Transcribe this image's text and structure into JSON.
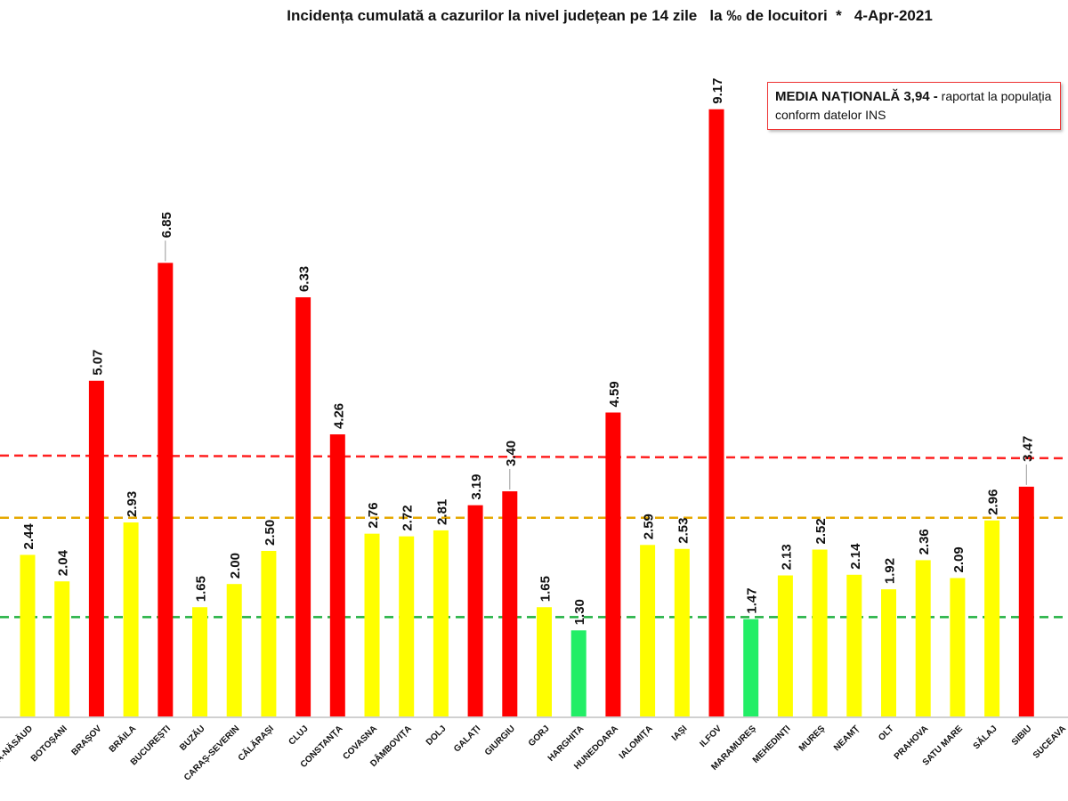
{
  "chart_data": {
    "type": "bar",
    "title": "Incidența cumulată a cazurilor la nivel județean pe 14 zile   la ‰ de locuitori  *   4-Apr-2021",
    "xlabel": "",
    "ylabel": "",
    "ylim": [
      0,
      9.2
    ],
    "grid": false,
    "categories": [
      "BISTRIȚA-NĂSĂUD",
      "BOTOȘANI",
      "BRAȘOV",
      "BRĂILA",
      "BUCUREȘTI",
      "BUZĂU",
      "CARAȘ-SEVERIN",
      "CĂLĂRAȘI",
      "CLUJ",
      "CONSTANȚA",
      "COVASNA",
      "DÂMBOVIȚA",
      "DOLJ",
      "GALAȚI",
      "GIURGIU",
      "GORJ",
      "HARGHITA",
      "HUNEDOARA",
      "IALOMIȚA",
      "IAȘI",
      "ILFOV",
      "MARAMUREȘ",
      "MEHEDINȚI",
      "MUREȘ",
      "NEAMȚ",
      "OLT",
      "PRAHOVA",
      "SATU MARE",
      "SĂLAJ",
      "SIBIU",
      "SUCEAVA"
    ],
    "values": [
      2.44,
      2.04,
      5.07,
      2.93,
      6.85,
      1.65,
      2.0,
      2.5,
      6.33,
      4.26,
      2.76,
      2.72,
      2.81,
      3.19,
      3.4,
      1.65,
      1.3,
      4.59,
      2.59,
      2.53,
      9.17,
      1.47,
      2.13,
      2.52,
      2.14,
      1.92,
      2.36,
      2.09,
      2.96,
      3.47,
      null
    ],
    "value_labels": [
      "2.44",
      "2.04",
      "5.07",
      "2.93",
      "6.85",
      "1.65",
      "2.00",
      "2.50",
      "6.33",
      "4.26",
      "2.76",
      "2.72",
      "2.81",
      "3.19",
      "3.40",
      "1.65",
      "1.30",
      "4.59",
      "2.59",
      "2.53",
      "9.17",
      "1.47",
      "2.13",
      "2.52",
      "2.14",
      "1.92",
      "2.36",
      "2.09",
      "2.96",
      "3.47",
      ""
    ],
    "thresholds": [
      {
        "value": 3.94,
        "color": "#ff2020"
      },
      {
        "value": 3.0,
        "color": "#e6a800"
      },
      {
        "value": 1.5,
        "color": "#20b040"
      }
    ],
    "colors": {
      "high": "#ff0000",
      "mid": "#ffff00",
      "low": "#22ee66"
    }
  },
  "note": {
    "bold": "MEDIA NAȚIONALĂ 3,94 -",
    "line1_rest": " raportat la populația",
    "line2": "conform datelor INS"
  }
}
